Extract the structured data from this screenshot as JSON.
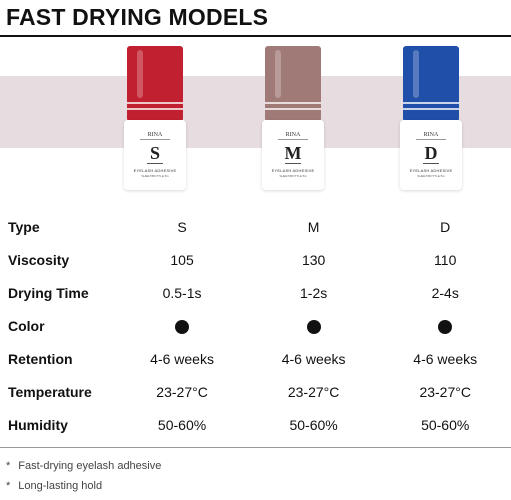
{
  "title": "FAST DRYING MODELS",
  "products": [
    {
      "brand": "RINA",
      "letter": "S",
      "label": "EYELASH ADHESIVE",
      "small": "SHEET/BOTTLE 5G",
      "cap_color": "#c0202f"
    },
    {
      "brand": "RINA",
      "letter": "M",
      "label": "EYELASH ADHESIVE",
      "small": "SHEET/BOTTLE 5G",
      "cap_color": "#a07a76"
    },
    {
      "brand": "RINA",
      "letter": "D",
      "label": "EYELASH ADHESIVE",
      "small": "SHEET/BOTTLE 5G",
      "cap_color": "#1f4fa8"
    }
  ],
  "specs": {
    "type": {
      "label": "Type",
      "values": [
        "S",
        "M",
        "D"
      ]
    },
    "viscosity": {
      "label": "Viscosity",
      "values": [
        "105",
        "130",
        "110"
      ]
    },
    "drying_time": {
      "label": "Drying Time",
      "values": [
        "0.5-1s",
        "1-2s",
        "2-4s"
      ]
    },
    "color": {
      "label": "Color",
      "values": [
        "black",
        "black",
        "black"
      ],
      "dot_color": "#111111"
    },
    "retention": {
      "label": "Retention",
      "values": [
        "4-6 weeks",
        "4-6 weeks",
        "4-6 weeks"
      ]
    },
    "temperature": {
      "label": "Temperature",
      "values": [
        "23-27°C",
        "23-27°C",
        "23-27°C"
      ]
    },
    "humidity": {
      "label": "Humidity",
      "values": [
        "50-60%",
        "50-60%",
        "50-60%"
      ]
    }
  },
  "notes": [
    {
      "marker": "*",
      "text": "Fast-drying eyelash adhesive"
    },
    {
      "marker": "*",
      "text": "Long-lasting hold"
    }
  ]
}
